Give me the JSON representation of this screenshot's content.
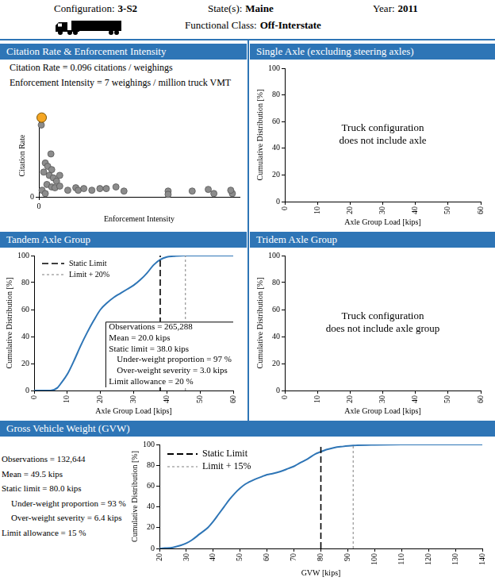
{
  "header": {
    "fields": [
      {
        "label": "Configuration:",
        "value": "3-S2"
      },
      {
        "label": "State(s):",
        "value": "Maine"
      },
      {
        "label": "Year:",
        "value": "2011"
      },
      {
        "label": "Functional Class:",
        "value": "Off-Interstate"
      }
    ]
  },
  "chart_data": [
    {
      "type": "scatter",
      "title": "Citation Rate & Enforcement Intensity",
      "annotations": [
        "Citation Rate = 0.096 citations / weighings",
        "Enforcement Intensity = 7 weighings / million truck VMT"
      ],
      "xlabel": "Enforcement Intensity",
      "ylabel": "Citation Rate",
      "x": [
        6,
        30,
        16,
        22,
        32,
        12,
        26,
        36,
        44,
        20,
        32,
        40,
        52,
        72,
        92,
        98,
        112,
        132,
        152,
        168,
        192,
        212,
        322,
        322,
        382,
        422,
        436,
        482,
        478,
        8,
        16,
        52
      ],
      "values": [
        0.087,
        0.052,
        0.041,
        0.037,
        0.033,
        0.03,
        0.026,
        0.023,
        0.019,
        0.015,
        0.012,
        0.011,
        0.013,
        0.008,
        0.011,
        0.008,
        0.01,
        0.008,
        0.01,
        0.01,
        0.012,
        0.007,
        0.007,
        0.003,
        0.007,
        0.009,
        0.004,
        0.004,
        0.008,
        0.008,
        0.004,
        0.026
      ],
      "color": "#8c8c8c",
      "highlight": {
        "x": 7,
        "y": 0.096,
        "color": "#f5a623"
      },
      "xlim": [
        0,
        500
      ],
      "xticks": [
        0
      ],
      "ylim": [
        0,
        0.1
      ],
      "yticks": [
        0
      ],
      "grid": false
    },
    {
      "type": "line",
      "title": "Single Axle (excluding steering axles)",
      "message": [
        "Truck configuration",
        "does not include axle"
      ],
      "xlabel": "Axle Group Load [kips]",
      "ylabel": "Cumulative Distribution [%]",
      "x": [],
      "values": [],
      "xlim": [
        0,
        60
      ],
      "xticks": [
        0,
        10,
        20,
        30,
        40,
        50,
        60
      ],
      "ylim": [
        0,
        100
      ],
      "yticks": [
        0,
        20,
        40,
        60,
        80,
        100
      ],
      "grid": false
    },
    {
      "type": "line",
      "title": "Tandem Axle Group",
      "xlabel": "Axle Group Load [kips]",
      "ylabel": "Cumulative Distribution [%]",
      "x": [
        0,
        5,
        7,
        8,
        10,
        12,
        14,
        16,
        18,
        20,
        22,
        24,
        26,
        28,
        30,
        32,
        34,
        36,
        38,
        40,
        42,
        45,
        50,
        60
      ],
      "values": [
        0,
        0,
        2,
        5,
        12,
        22,
        33,
        43,
        52,
        60,
        65,
        69,
        72,
        75,
        78,
        82,
        87,
        93,
        97,
        99,
        99.5,
        100,
        100,
        100
      ],
      "color": "#2e75b6",
      "reference_lines": [
        {
          "name": "Static Limit",
          "x": 38,
          "color": "#000000",
          "line_style": "dashed"
        },
        {
          "name": "Limit + 20%",
          "x": 45.6,
          "color": "#7f7f7f",
          "line_style": "dotted"
        }
      ],
      "legend": "top-left",
      "annotations": [
        "Observations = 265,288",
        "Mean = 20.0 kips",
        "Static limit = 38.0 kips",
        "Under-weight proportion = 97 %",
        "Over-weight severity = 3.0 kips",
        "Limit allowance = 20 %"
      ],
      "xlim": [
        0,
        60
      ],
      "xticks": [
        0,
        10,
        20,
        30,
        40,
        50,
        60
      ],
      "ylim": [
        0,
        100
      ],
      "yticks": [
        0,
        20,
        40,
        60,
        80,
        100
      ],
      "grid": false
    },
    {
      "type": "line",
      "title": "Tridem Axle Group",
      "message": [
        "Truck configuration",
        "does not include axle group"
      ],
      "xlabel": "Axle Group Load [kips]",
      "ylabel": "Cumulative Distribution [%]",
      "x": [],
      "values": [],
      "xlim": [
        0,
        60
      ],
      "xticks": [
        0,
        10,
        20,
        30,
        40,
        50,
        60
      ],
      "ylim": [
        0,
        100
      ],
      "yticks": [
        0,
        20,
        40,
        60,
        80,
        100
      ],
      "grid": false
    },
    {
      "type": "line",
      "title": "Gross Vehicle Weight (GVW)",
      "xlabel": "GVW [kips]",
      "ylabel": "Cumulative Distribution [%]",
      "x": [
        20,
        22,
        25,
        28,
        30,
        32,
        35,
        38,
        40,
        42,
        44,
        46,
        48,
        50,
        52,
        55,
        58,
        60,
        62,
        65,
        68,
        70,
        72,
        75,
        78,
        80,
        82,
        85,
        88,
        92,
        100,
        110,
        140
      ],
      "values": [
        0,
        0.3,
        1,
        3,
        5,
        8,
        14,
        20,
        26,
        33,
        40,
        47,
        53,
        58,
        62,
        66,
        69,
        71,
        72,
        74,
        77,
        79,
        82,
        86,
        91,
        93,
        95,
        97,
        98,
        99,
        99.7,
        100,
        100
      ],
      "color": "#2e75b6",
      "reference_lines": [
        {
          "name": "Static Limit",
          "x": 80,
          "color": "#000000",
          "line_style": "dashed"
        },
        {
          "name": "Limit + 15%",
          "x": 92,
          "color": "#7f7f7f",
          "line_style": "dotted"
        }
      ],
      "legend": "top-left",
      "annotations": [
        "Observations = 132,644",
        "Mean = 49.5 kips",
        "Static limit = 80.0 kips",
        "Under-weight proportion = 93 %",
        "Over-weight severity = 6.4 kips",
        "Limit allowance = 15 %"
      ],
      "xlim": [
        20,
        140
      ],
      "xticks": [
        20,
        30,
        40,
        50,
        60,
        70,
        80,
        90,
        100,
        110,
        120,
        130,
        140
      ],
      "ylim": [
        0,
        100
      ],
      "yticks": [
        0,
        20,
        40,
        60,
        80,
        100
      ],
      "grid": false
    }
  ]
}
